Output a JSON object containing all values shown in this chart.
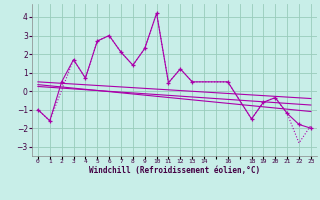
{
  "xlabel": "Windchill (Refroidissement éolien,°C)",
  "bg_color": "#c8eee8",
  "grid_color": "#99ccbb",
  "line_color": "#aa00aa",
  "xtick_labels": [
    "0",
    "1",
    "2",
    "3",
    "4",
    "5",
    "6",
    "7",
    "8",
    "9",
    "10",
    "11",
    "12",
    "13",
    "14",
    " ",
    "16",
    " ",
    "18",
    "19",
    "20",
    "21",
    "22",
    "23"
  ],
  "ylim": [
    -3.5,
    4.7
  ],
  "xlim": [
    -0.5,
    23.5
  ],
  "yticks": [
    -3,
    -2,
    -1,
    0,
    1,
    2,
    3,
    4
  ],
  "series1_x": [
    0,
    1,
    2,
    3,
    4,
    5,
    6,
    7,
    8,
    9,
    10,
    11,
    12,
    13,
    16,
    18,
    19,
    20,
    21,
    22,
    23
  ],
  "series1_y": [
    -1.0,
    -1.6,
    0.5,
    1.7,
    0.7,
    2.7,
    3.0,
    2.1,
    1.4,
    2.3,
    4.2,
    0.45,
    1.2,
    0.5,
    0.5,
    -1.5,
    -0.6,
    -0.35,
    -1.2,
    -1.8,
    -2.0
  ],
  "series2_x": [
    0,
    1,
    3,
    4,
    5,
    6,
    7,
    8,
    9,
    10,
    11,
    12,
    13,
    16,
    18,
    19,
    20,
    21,
    22,
    23
  ],
  "series2_y": [
    -1.0,
    -1.6,
    1.7,
    0.7,
    2.7,
    3.0,
    2.1,
    1.4,
    2.3,
    4.2,
    0.45,
    1.2,
    0.5,
    0.5,
    -1.5,
    -0.6,
    -0.35,
    -1.2,
    -2.8,
    -1.85
  ],
  "trend1_x": [
    0,
    23
  ],
  "trend1_y": [
    0.5,
    -0.4
  ],
  "trend2_x": [
    0,
    23
  ],
  "trend2_y": [
    0.35,
    -1.1
  ],
  "trend3_x": [
    0,
    23
  ],
  "trend3_y": [
    0.25,
    -0.75
  ]
}
